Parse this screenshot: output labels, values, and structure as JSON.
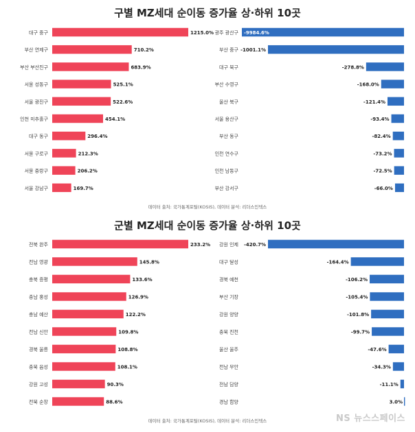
{
  "colors": {
    "positive": "#ef4458",
    "negative": "#2f6ec0",
    "label": "#444444",
    "value": "#222222"
  },
  "watermark": "NS 뉴스스페이스",
  "chart_data": [
    {
      "type": "bar",
      "title": "구별 MZ세대 순이동 증가율 상·하위 10곳",
      "source": "데이터 출처: 국가통계포털(KOSIS), 데이터 분석: 리더스인덱스",
      "top": {
        "categories": [
          "대구 중구",
          "부산 연제구",
          "부산 부산진구",
          "서울 성동구",
          "서울 광진구",
          "인천 미추홀구",
          "대구 동구",
          "서울 구로구",
          "서울 중랑구",
          "서울 강남구"
        ],
        "values": [
          1215.0,
          710.2,
          683.9,
          525.1,
          522.6,
          454.1,
          296.4,
          212.3,
          206.2,
          169.7
        ],
        "labels": [
          "1215.0%",
          "710.2%",
          "683.9%",
          "525.1%",
          "522.6%",
          "454.1%",
          "296.4%",
          "212.3%",
          "206.2%",
          "169.7%"
        ]
      },
      "bottom": {
        "categories": [
          "광주 광산구",
          "부산 중구",
          "대구 북구",
          "부산 수영구",
          "울산 북구",
          "서울 용산구",
          "부산 동구",
          "인천 연수구",
          "인천 남동구",
          "부산 강서구"
        ],
        "values": [
          -9984.6,
          -1001.1,
          -278.8,
          -168.0,
          -121.4,
          -93.4,
          -82.4,
          -73.2,
          -72.5,
          -66.0
        ],
        "labels": [
          "-9984.6%",
          "-1001.1%",
          "-278.8%",
          "-168.0%",
          "-121.4%",
          "-93.4%",
          "-82.4%",
          "-73.2%",
          "-72.5%",
          "-66.0%"
        ]
      }
    },
    {
      "type": "bar",
      "title": "군별 MZ세대 순이동 증가율 상·하위 10곳",
      "source": "데이터 출처: 국가통계포털(KOSIS), 데이터 분석: 리더스인덱스",
      "top": {
        "categories": [
          "전북 완주",
          "전남 영광",
          "충북 증평",
          "충남 홍성",
          "충남 예산",
          "전남 신안",
          "경북 울릉",
          "충북 음성",
          "강원 고성",
          "전북 순창"
        ],
        "values": [
          233.2,
          145.8,
          133.6,
          126.9,
          122.2,
          109.8,
          108.8,
          108.1,
          90.3,
          88.6
        ],
        "labels": [
          "233.2%",
          "145.8%",
          "133.6%",
          "126.9%",
          "122.2%",
          "109.8%",
          "108.8%",
          "108.1%",
          "90.3%",
          "88.6%"
        ]
      },
      "bottom": {
        "categories": [
          "강원 인제",
          "대구 달성",
          "경북 예천",
          "부산 기장",
          "강원 양양",
          "충북 진천",
          "울산 울주",
          "전남 무안",
          "전남 담양",
          "경남 함양"
        ],
        "values": [
          -420.7,
          -164.4,
          -106.2,
          -105.4,
          -101.8,
          -99.7,
          -47.6,
          -34.3,
          -11.1,
          3.0
        ],
        "labels": [
          "-420.7%",
          "-164.4%",
          "-106.2%",
          "-105.4%",
          "-101.8%",
          "-99.7%",
          "-47.6%",
          "-34.3%",
          "-11.1%",
          "3.0%"
        ]
      }
    }
  ]
}
